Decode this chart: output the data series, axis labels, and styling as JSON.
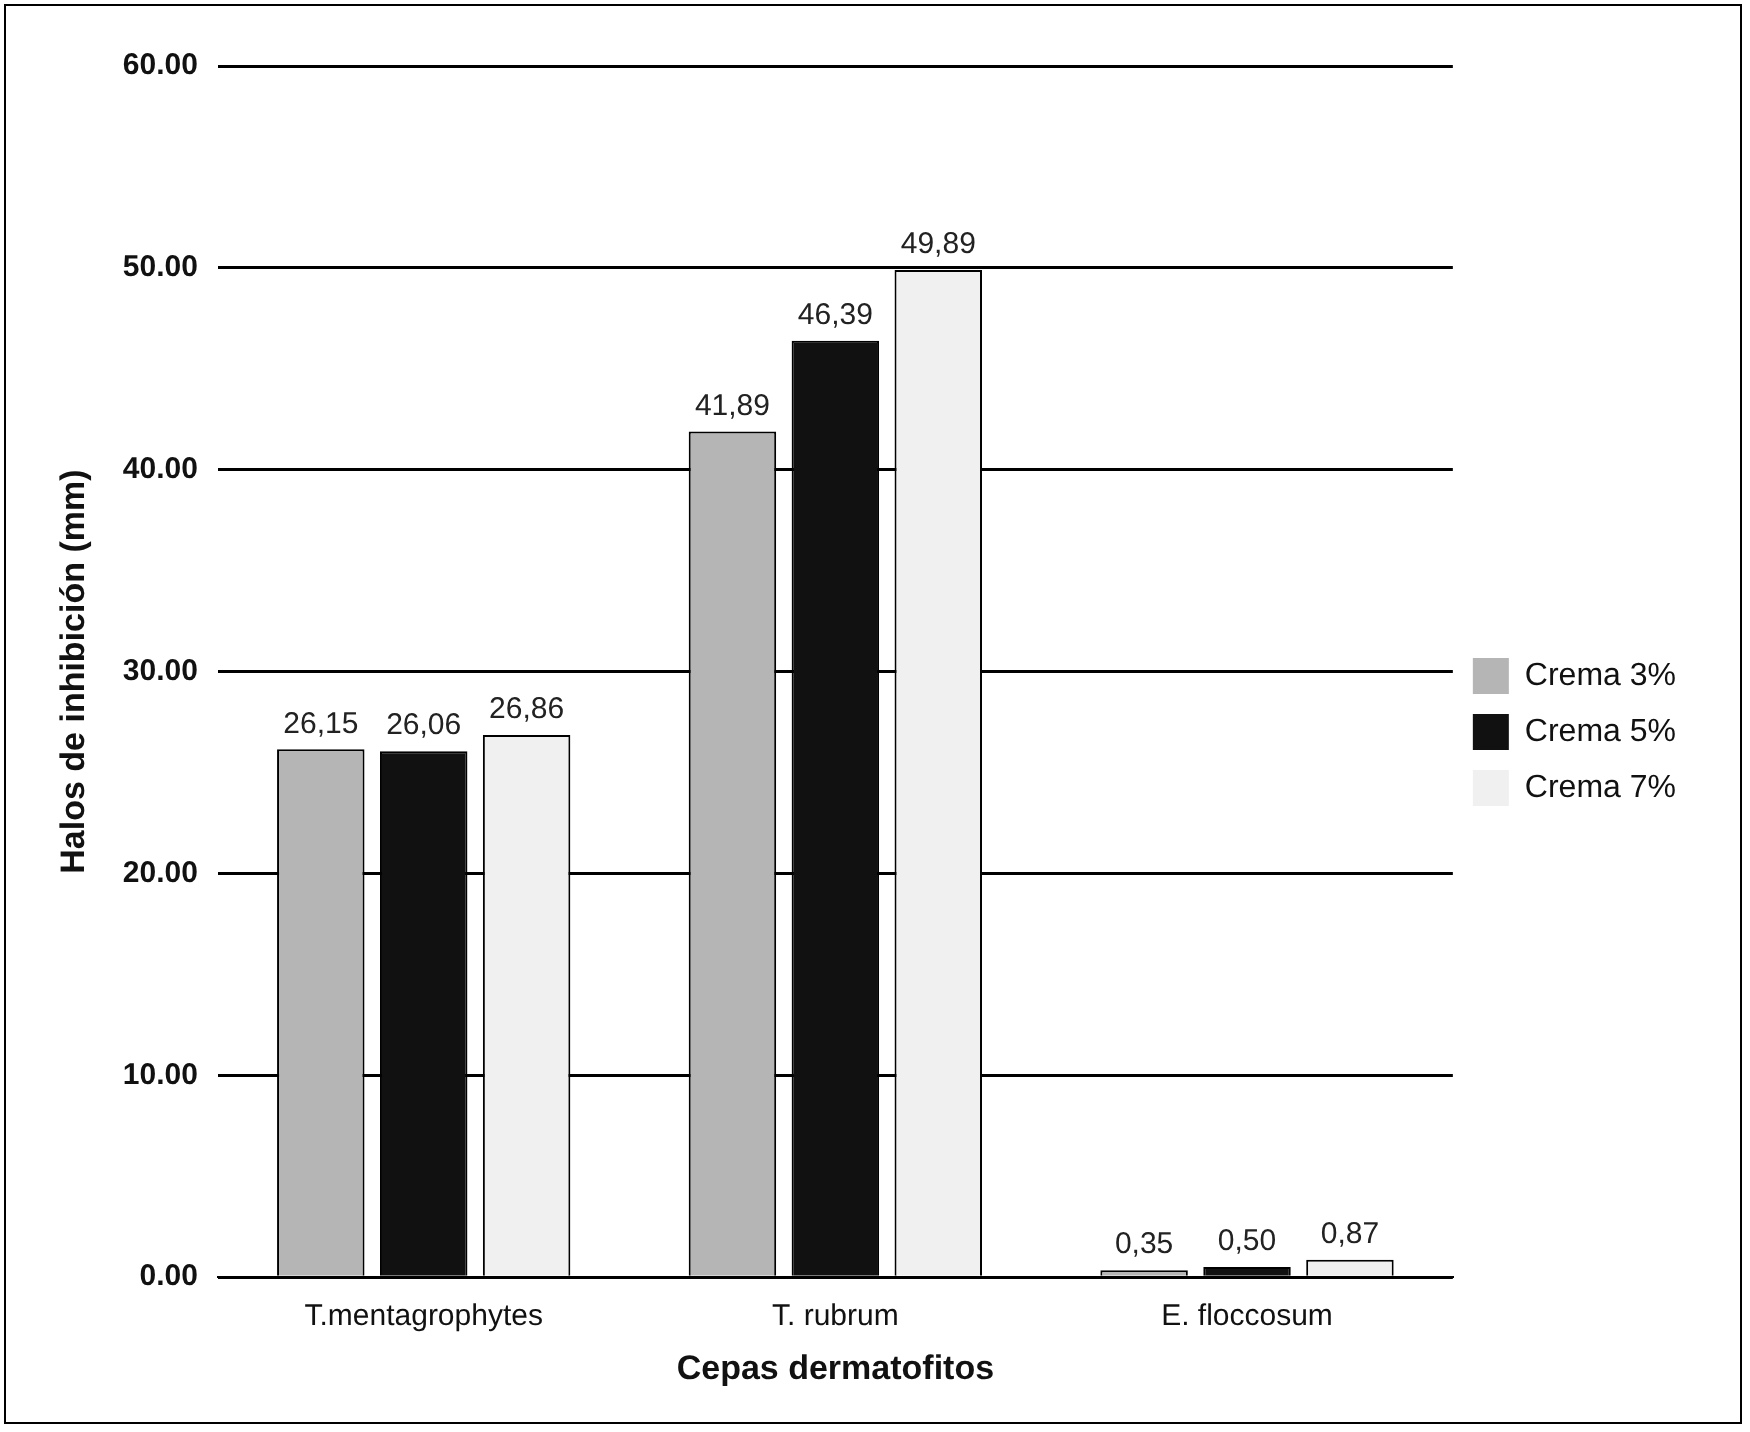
{
  "chart_data": {
    "type": "bar",
    "xlabel": "Cepas dermatofitos",
    "ylabel": "Halos de inhibición (mm)",
    "categories": [
      "T.mentagrophytes",
      "T. rubrum",
      "E. floccosum"
    ],
    "series": [
      {
        "name": "Crema 3%",
        "color": "#b5b5b5",
        "values": [
          26.15,
          41.89,
          0.35
        ],
        "value_labels": [
          "26,15",
          "41,89",
          "0,35"
        ]
      },
      {
        "name": "Crema 5%",
        "color": "#111111",
        "values": [
          26.06,
          46.39,
          0.5
        ],
        "value_labels": [
          "26,06",
          "46,39",
          "0,50"
        ]
      },
      {
        "name": "Crema 7%",
        "color": "#f0f0f0",
        "values": [
          26.86,
          49.89,
          0.87
        ],
        "value_labels": [
          "26,86",
          "49,89",
          "0,87"
        ]
      }
    ],
    "ylim": [
      0,
      60
    ],
    "yticks": [
      {
        "value": 0,
        "label": "0.00"
      },
      {
        "value": 10,
        "label": "10.00"
      },
      {
        "value": 20,
        "label": "20.00"
      },
      {
        "value": 30,
        "label": "30.00"
      },
      {
        "value": 40,
        "label": "40.00"
      },
      {
        "value": 50,
        "label": "50.00"
      },
      {
        "value": 60,
        "label": "60.00"
      }
    ],
    "grid": "y",
    "legend": "right"
  }
}
